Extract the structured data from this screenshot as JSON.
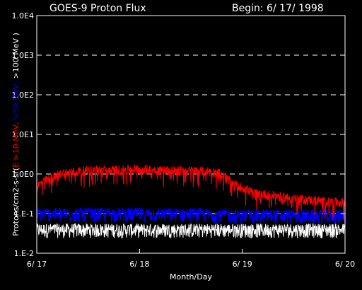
{
  "header": {
    "title": "GOES-9 Proton Flux",
    "begin": "Begin: 6/ 17/ 1998"
  },
  "chart_data": {
    "type": "line",
    "title": "GOES-9 Proton Flux",
    "xlabel": "Month/Day",
    "ylabel_parts": [
      {
        "text": "Protons/cm2-s-sr(",
        "color": "#ffffff"
      },
      {
        "text": "E >10 MeV, ",
        "color": "#ff0000"
      },
      {
        "text": ">50 MeV, ",
        "color": "#0000ff"
      },
      {
        "text": ">100 MeV )",
        "color": "#ffffff"
      }
    ],
    "x_ticks": [
      "6/ 17",
      "6/ 18",
      "6/ 19",
      "6/ 20"
    ],
    "xlim": [
      0,
      3
    ],
    "y_scale": "log",
    "ylim": [
      0.01,
      10000
    ],
    "y_ticks": [
      {
        "value": 0.01,
        "label": "1.E-2"
      },
      {
        "value": 0.1,
        "label": "1.E-1"
      },
      {
        "value": 1,
        "label": "1.0E0"
      },
      {
        "value": 10,
        "label": "1.0E1"
      },
      {
        "value": 100,
        "label": "1.0E2"
      },
      {
        "value": 1000,
        "label": "1.0E3"
      },
      {
        "value": 10000,
        "label": "1.0E4"
      }
    ],
    "grid": "dashed horizontal",
    "series": [
      {
        "color": "#ff0000",
        "x": [
          0,
          0.25,
          0.5,
          0.75,
          1.0,
          1.25,
          1.5,
          1.75,
          1.9,
          2.1,
          2.5,
          2.9,
          3.0
        ],
        "y": [
          0.5,
          1.1,
          1.3,
          1.3,
          1.4,
          1.3,
          1.25,
          1.2,
          0.6,
          0.35,
          0.25,
          0.2,
          0.2
        ]
      },
      {
        "color": "#0000ff",
        "x": [
          0,
          0.5,
          1.0,
          1.5,
          2.0,
          2.5,
          3.0
        ],
        "y": [
          0.1,
          0.1,
          0.1,
          0.1,
          0.09,
          0.09,
          0.09
        ]
      },
      {
        "color": "#ffffff",
        "x": [
          0,
          0.5,
          1.0,
          1.5,
          2.0,
          2.5,
          3.0
        ],
        "y": [
          0.04,
          0.04,
          0.04,
          0.04,
          0.04,
          0.04,
          0.04
        ]
      }
    ]
  }
}
